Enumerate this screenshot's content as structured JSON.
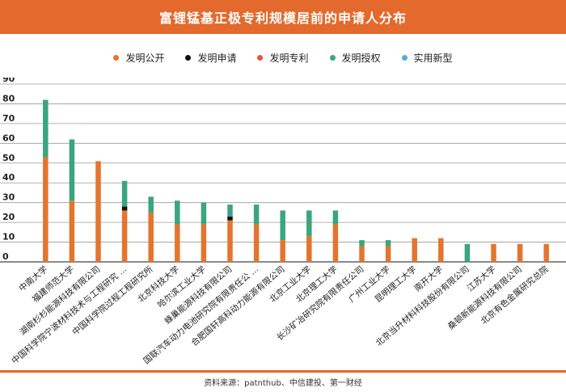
{
  "title": "富锂锰基正极专利规模居前的申请人分布",
  "source": "资料来源：patnthub、中信建投、第一财经",
  "colors": {
    "发明公开": "#e3752e",
    "发明申请": "#111111",
    "发明专利": "#e8543f",
    "发明授权": "#3aa57f",
    "实用新型": "#49b3d6",
    "accent": "#e36a2c"
  },
  "chart_data": {
    "type": "bar",
    "stacked": true,
    "title": "富锂锰基正极专利规模居前的申请人分布",
    "xlabel": "",
    "ylabel": "",
    "ylim": [
      0,
      90
    ],
    "yticks": [
      0,
      10,
      20,
      30,
      40,
      50,
      60,
      70,
      80,
      90
    ],
    "grid": true,
    "legend_position": "top",
    "categories": [
      "中南大学",
      "福建师范大学",
      "湖南杉杉能源科技有限公司",
      "中国科学院宁波材料技术与工程研究 ...",
      "中国科学院过程工程研究所",
      "北京科技大学",
      "哈尔滨工业大学",
      "蜂巢能源科技有限公司",
      "国联汽车动力电池研究院有限责任公 ...",
      "合肥国轩高科动力能源有限公司",
      "北京工业大学",
      "北京理工大学",
      "长沙矿冶研究院有限责任公司",
      "广州工业大学",
      "昆明理工大学",
      "南开大学",
      "北京当升材料科技股份有限公司",
      "江苏大学",
      "桑顿新能源科技有限公司",
      "北京有色金属研究总院"
    ],
    "series": [
      {
        "name": "发明公开",
        "values": [
          53,
          31,
          51,
          26,
          25,
          19,
          19,
          21,
          19,
          11,
          13,
          19,
          8,
          8,
          12,
          12,
          0,
          9,
          9,
          9
        ]
      },
      {
        "name": "发明申请",
        "values": [
          0,
          0,
          0,
          2,
          0,
          0,
          0,
          2,
          0,
          0,
          0,
          0,
          0,
          0,
          0,
          0,
          0,
          0,
          0,
          0
        ]
      },
      {
        "name": "发明专利",
        "values": [
          0,
          0,
          0,
          0,
          0,
          0,
          0,
          0,
          0,
          0,
          0,
          0,
          0,
          0,
          0,
          0,
          0,
          0,
          0,
          0
        ]
      },
      {
        "name": "发明授权",
        "values": [
          29,
          31,
          0,
          13,
          8,
          12,
          11,
          6,
          10,
          15,
          13,
          7,
          3,
          3,
          0,
          0,
          9,
          0,
          0,
          0
        ]
      },
      {
        "name": "实用新型",
        "values": [
          0,
          0,
          0,
          0,
          0,
          0,
          0,
          0,
          0,
          0,
          0,
          0,
          0,
          0,
          0,
          0,
          0,
          0,
          0,
          0
        ]
      }
    ]
  }
}
